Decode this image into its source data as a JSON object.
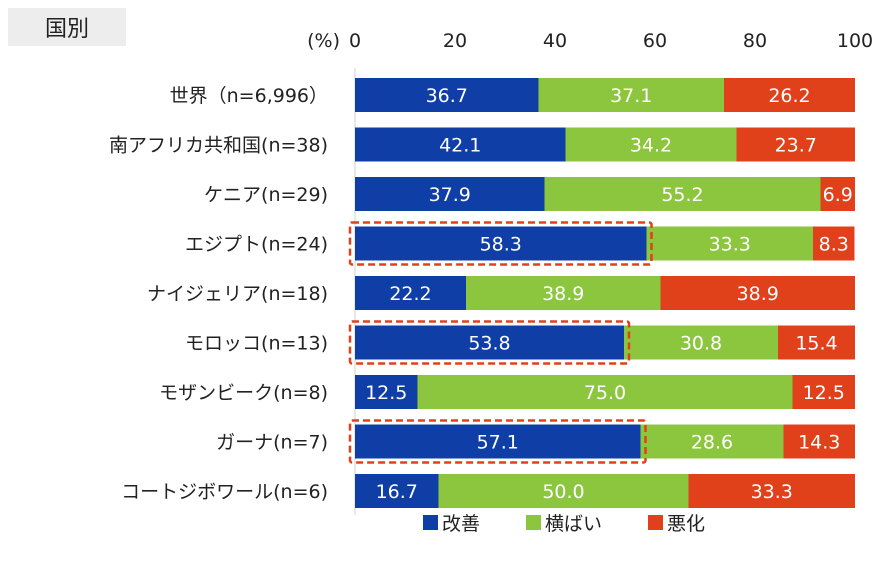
{
  "tag_label": "国別",
  "unit_label": "(%)",
  "colors": {
    "kaizen": "#0f3fa6",
    "yokobai": "#8cc63f",
    "akka": "#e0401a",
    "highlight": "#e0401a"
  },
  "chart_data": {
    "type": "bar",
    "orientation": "horizontal-stacked-100",
    "categories": [
      "世界（n=6,996）",
      "南アフリカ共和国(n=38)",
      "ケニア(n=29)",
      "エジプト(n=24)",
      "ナイジェリア(n=18)",
      "モロッコ(n=13)",
      "モザンビーク(n=8)",
      "ガーナ(n=7)",
      "コートジボワール(n=6)"
    ],
    "series": [
      {
        "name": "改善",
        "values": [
          36.7,
          42.1,
          37.9,
          58.3,
          22.2,
          53.8,
          12.5,
          57.1,
          16.7
        ]
      },
      {
        "name": "横ばい",
        "values": [
          37.1,
          34.2,
          55.2,
          33.3,
          38.9,
          30.8,
          75.0,
          28.6,
          50.0
        ]
      },
      {
        "name": "悪化",
        "values": [
          26.2,
          23.7,
          6.9,
          8.3,
          38.9,
          15.4,
          12.5,
          14.3,
          33.3
        ]
      }
    ],
    "labels": [
      [
        "36.7",
        "37.1",
        "26.2"
      ],
      [
        "42.1",
        "34.2",
        "23.7"
      ],
      [
        "37.9",
        "55.2",
        "6.9"
      ],
      [
        "58.3",
        "33.3",
        "8.3"
      ],
      [
        "22.2",
        "38.9",
        "38.9"
      ],
      [
        "53.8",
        "30.8",
        "15.4"
      ],
      [
        "12.5",
        "75.0",
        "12.5"
      ],
      [
        "57.1",
        "28.6",
        "14.3"
      ],
      [
        "16.7",
        "50.0",
        "33.3"
      ]
    ],
    "xlim": [
      0,
      100
    ],
    "xticks": [
      "0",
      "20",
      "40",
      "60",
      "80",
      "100"
    ],
    "highlighted_categories": [
      3,
      5,
      7
    ]
  }
}
